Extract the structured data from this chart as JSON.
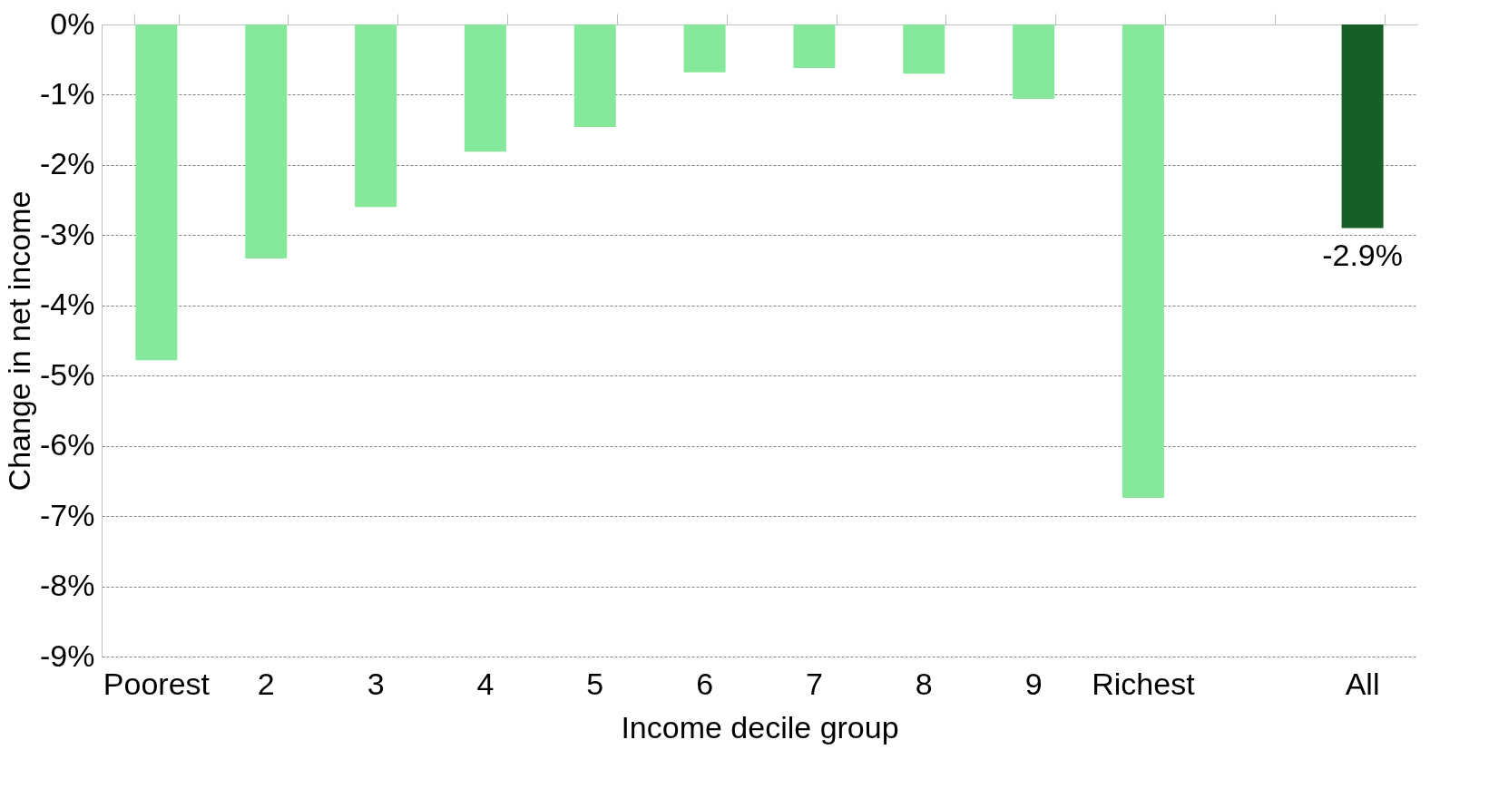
{
  "chart_data": {
    "type": "bar",
    "xlabel": "Income decile group",
    "ylabel": "Change in net income",
    "categories": [
      "Poorest",
      "2",
      "3",
      "4",
      "5",
      "6",
      "7",
      "8",
      "9",
      "Richest",
      null,
      "All"
    ],
    "values": [
      -4.78,
      -3.33,
      -2.6,
      -1.81,
      -1.46,
      -0.68,
      -0.62,
      -0.7,
      -1.06,
      -6.74,
      null,
      -2.9
    ],
    "colors": [
      "#85e89b",
      "#85e89b",
      "#85e89b",
      "#85e89b",
      "#85e89b",
      "#85e89b",
      "#85e89b",
      "#85e89b",
      "#85e89b",
      "#85e89b",
      "#85e89b",
      "#175e27"
    ],
    "value_labels": [
      null,
      null,
      null,
      null,
      null,
      null,
      null,
      null,
      null,
      null,
      null,
      "-2.9%"
    ],
    "ylim": [
      -9,
      0
    ],
    "yticks": [
      {
        "value": 0,
        "label": "0%"
      },
      {
        "value": -1,
        "label": "-1%"
      },
      {
        "value": -2,
        "label": "-2%"
      },
      {
        "value": -3,
        "label": "-3%"
      },
      {
        "value": -4,
        "label": "-4%"
      },
      {
        "value": -5,
        "label": "-5%"
      },
      {
        "value": -6,
        "label": "-6%"
      },
      {
        "value": -7,
        "label": "-7%"
      },
      {
        "value": -8,
        "label": "-8%"
      },
      {
        "value": -9,
        "label": "-9%"
      }
    ],
    "grid": "y"
  }
}
